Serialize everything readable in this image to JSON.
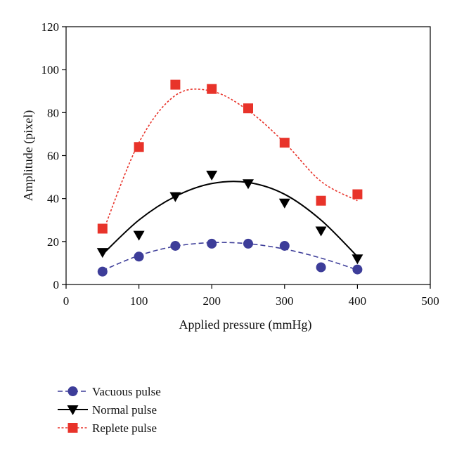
{
  "chart_data": {
    "type": "scatter",
    "xlabel": "Applied pressure (mmHg)",
    "ylabel": "Amplitude (pixel)",
    "xlim": [
      0,
      500
    ],
    "ylim": [
      0,
      120
    ],
    "xticks": [
      0,
      100,
      200,
      300,
      400,
      500
    ],
    "yticks": [
      0,
      20,
      40,
      60,
      80,
      100,
      120
    ],
    "grid": false,
    "legend_position": "bottom-left",
    "x": [
      50,
      100,
      150,
      200,
      250,
      300,
      350,
      400
    ],
    "series": [
      {
        "name": "Vacuous pulse",
        "marker": "circle",
        "color": "#3d3d99",
        "line_style": "dashed",
        "values": [
          6,
          13,
          18,
          19,
          19,
          18,
          8,
          7
        ],
        "fit_curve": [
          6.5,
          13.5,
          17.8,
          19.5,
          19,
          16.5,
          12.3,
          6.8
        ]
      },
      {
        "name": "Normal pulse",
        "marker": "triangle-down",
        "color": "#000000",
        "line_style": "solid",
        "values": [
          15,
          23,
          41,
          51,
          47,
          38,
          25,
          12
        ],
        "fit_curve": [
          14,
          30,
          41,
          47,
          47.5,
          42,
          30,
          13
        ]
      },
      {
        "name": "Replete pulse",
        "marker": "square",
        "color": "#e8332a",
        "line_style": "dotted",
        "values": [
          26,
          64,
          93,
          91,
          82,
          66,
          39,
          42
        ],
        "fit_curve": [
          24,
          66,
          88,
          90,
          81,
          66,
          48,
          39
        ]
      }
    ]
  }
}
